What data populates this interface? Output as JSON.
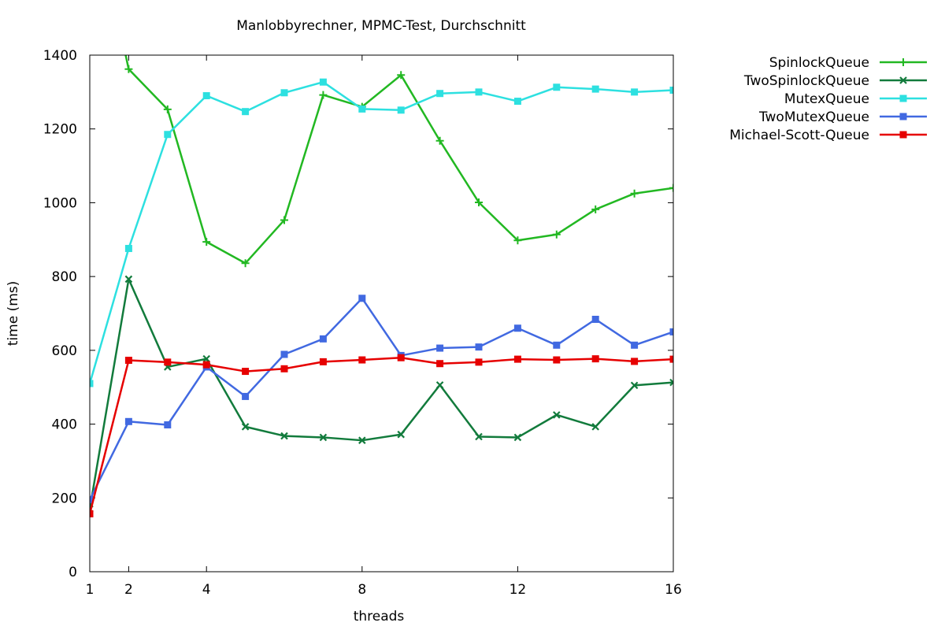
{
  "chart_data": {
    "type": "line",
    "title": "Manlobbyrechner, MPMC-Test, Durchschnitt",
    "xlabel": "threads",
    "ylabel": "time (ms)",
    "xlim": [
      1,
      16
    ],
    "ylim": [
      0,
      1400
    ],
    "xticks": [
      1,
      2,
      4,
      8,
      12,
      16
    ],
    "yticks": [
      0,
      200,
      400,
      600,
      800,
      1000,
      1200,
      1400
    ],
    "grid": false,
    "legend_position": "top-right, outside plot",
    "x": [
      1,
      2,
      3,
      4,
      5,
      6,
      7,
      8,
      9,
      10,
      11,
      12,
      13,
      14,
      15,
      16
    ],
    "series": [
      {
        "name": "SpinlockQueue",
        "color": "#22b822",
        "marker": "plus",
        "values": [
          1850,
          1362,
          1253,
          894,
          836,
          953,
          1292,
          1260,
          1346,
          1168,
          1001,
          898,
          914,
          982,
          1025,
          1040
        ]
      },
      {
        "name": "TwoSpinlockQueue",
        "color": "#127b3c",
        "marker": "cross",
        "values": [
          170,
          793,
          555,
          577,
          393,
          368,
          364,
          356,
          372,
          506,
          366,
          364,
          425,
          393,
          505,
          513
        ]
      },
      {
        "name": "MutexQueue",
        "color": "#2de0e0",
        "marker": "square",
        "values": [
          510,
          876,
          1185,
          1290,
          1247,
          1298,
          1327,
          1254,
          1251,
          1296,
          1300,
          1275,
          1313,
          1308,
          1300,
          1305
        ]
      },
      {
        "name": "TwoMutexQueue",
        "color": "#4169e1",
        "marker": "square",
        "values": [
          195,
          407,
          398,
          555,
          475,
          589,
          631,
          741,
          586,
          606,
          609,
          660,
          614,
          684,
          614,
          650
        ]
      },
      {
        "name": "Michael-Scott-Queue",
        "color": "#e60000",
        "marker": "square",
        "values": [
          157,
          573,
          568,
          561,
          543,
          550,
          569,
          574,
          580,
          564,
          568,
          576,
          574,
          577,
          570,
          576
        ]
      }
    ]
  }
}
